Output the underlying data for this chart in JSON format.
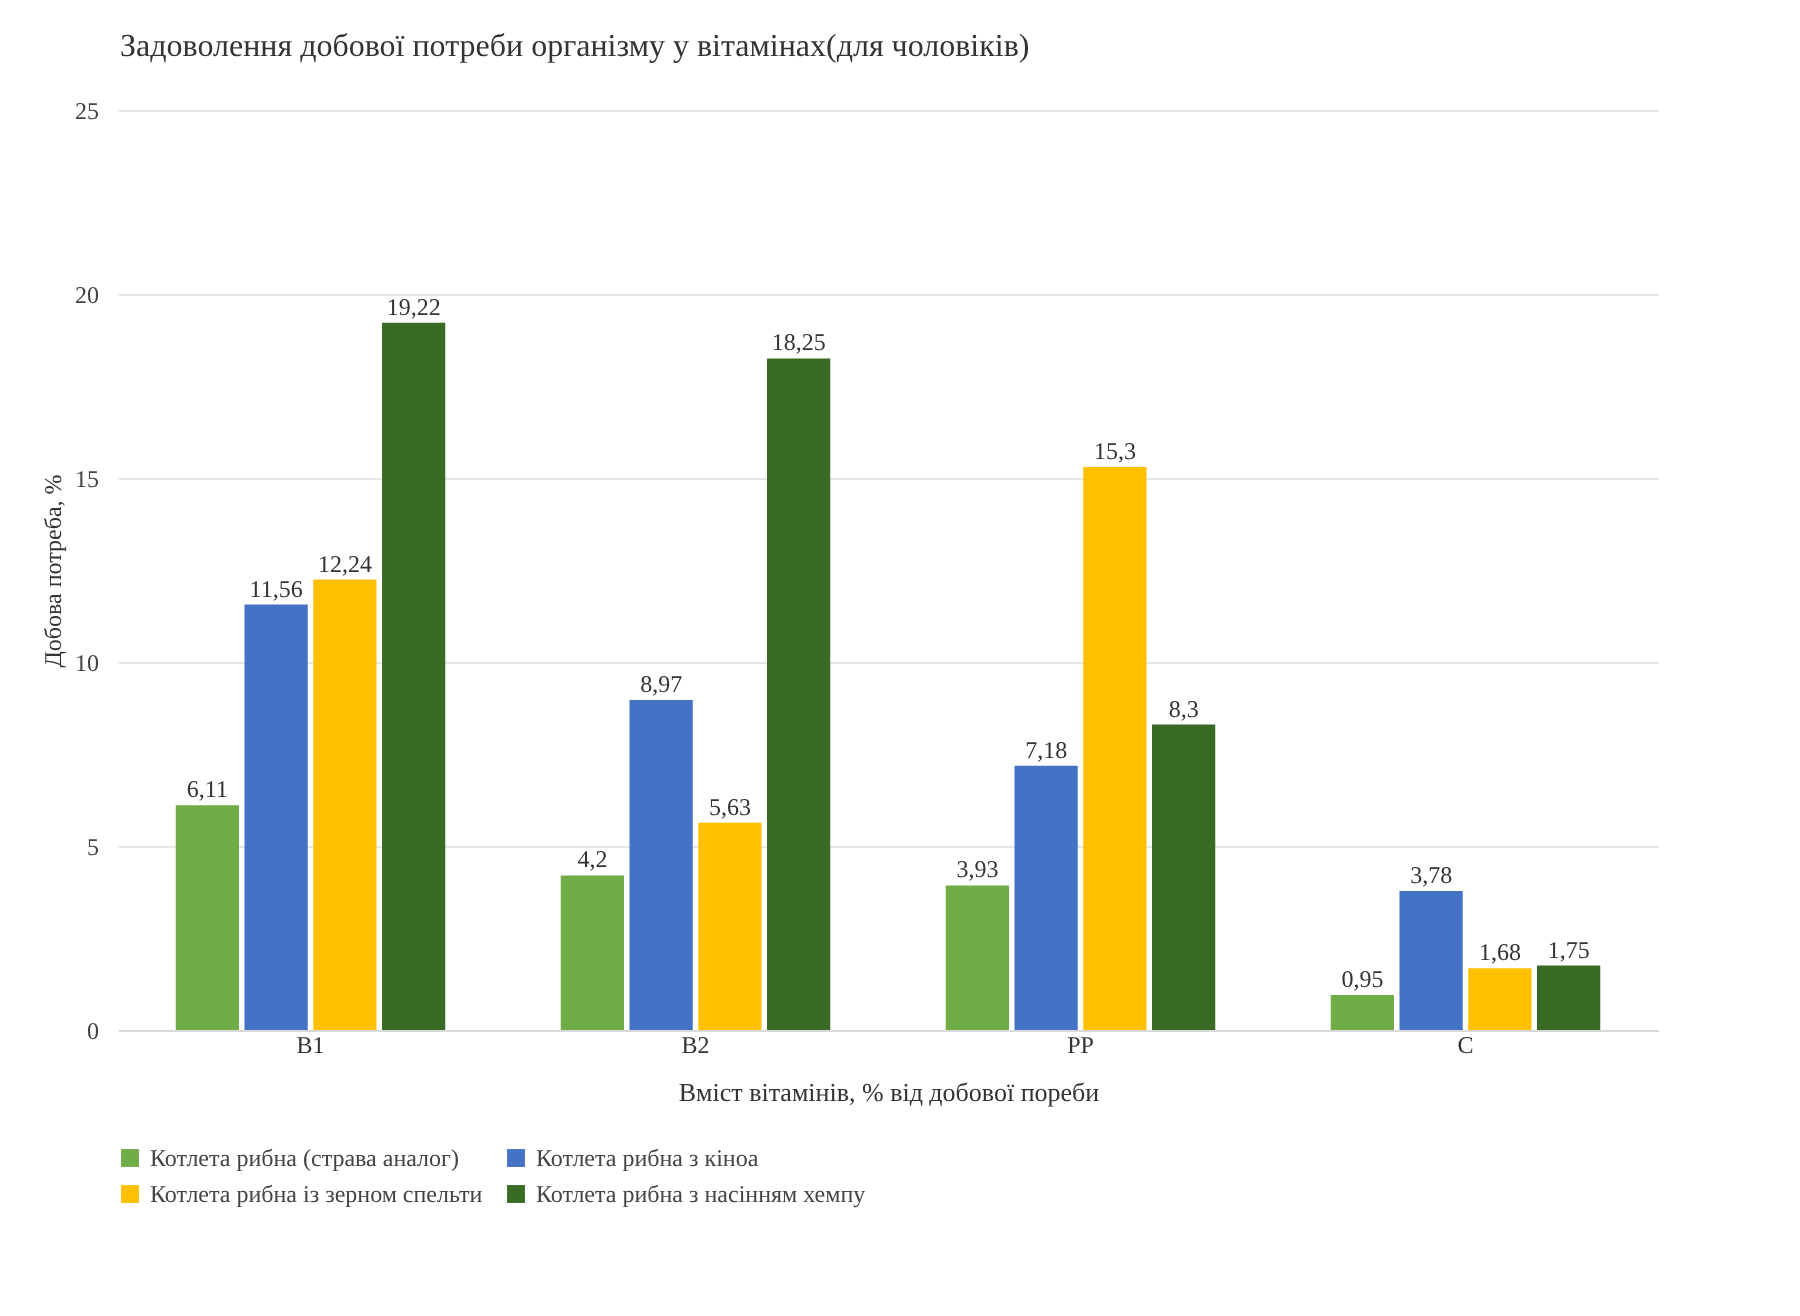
{
  "chart_data": {
    "type": "bar",
    "title": "Задоволення добової потреби організму у вітамінах(для чоловіків)",
    "xlabel": "Вміст вітамінів, % від добової пореби",
    "ylabel": "Добова потреба, %",
    "categories": [
      "B1",
      "B2",
      "PP",
      "C"
    ],
    "series": [
      {
        "name": "Котлета рибна (страва аналог)",
        "color": "#70ad47",
        "values": [
          6.11,
          4.2,
          3.93,
          0.95
        ],
        "value_labels": [
          "6,11",
          "4,2",
          "3,93",
          "0,95"
        ]
      },
      {
        "name": "Котлета рибна з кіноа",
        "color": "#4472c4",
        "values": [
          11.56,
          8.97,
          7.18,
          3.78
        ],
        "value_labels": [
          "11,56",
          "8,97",
          "7,18",
          "3,78"
        ]
      },
      {
        "name": "Котлета рибна із зерном спельти",
        "color": "#ffc000",
        "values": [
          12.24,
          5.63,
          15.3,
          1.68
        ],
        "value_labels": [
          "12,24",
          "5,63",
          "15,3",
          "1,68"
        ]
      },
      {
        "name": "Котлета рибна з насінням хемпу",
        "color": "#3a6b24",
        "values": [
          19.22,
          18.25,
          8.3,
          1.75
        ],
        "value_labels": [
          "19,22",
          "18,25",
          "8,3",
          "1,75"
        ]
      }
    ],
    "ylim": [
      0,
      25
    ],
    "yticks": [
      0,
      5,
      10,
      15,
      20,
      25
    ],
    "grid": "y",
    "legend": "bottom"
  }
}
